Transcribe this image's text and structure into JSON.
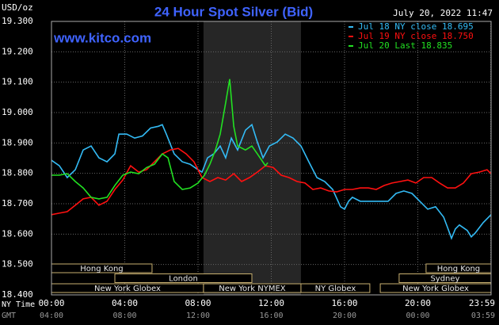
{
  "chart_data": {
    "type": "line",
    "title": "24 Hour Spot Silver (Bid)",
    "unit_label": "USD/oz",
    "timestamp": "July 20, 2022 11:47",
    "source": "www.kitco.com",
    "x_axis_label": "NY Time",
    "x2_axis_label": "GMT",
    "xlim": [
      0,
      24
    ],
    "xticks": [
      {
        "value": 0,
        "label": "00:00"
      },
      {
        "value": 4,
        "label": "04:00"
      },
      {
        "value": 8,
        "label": "08:00"
      },
      {
        "value": 12,
        "label": "12:00"
      },
      {
        "value": 16,
        "label": "16:00"
      },
      {
        "value": 20,
        "label": "20:00"
      },
      {
        "value": 23.983,
        "label": "23:59"
      }
    ],
    "gmt_labels": [
      "04:00",
      "08:00",
      "12:00",
      "16:00",
      "20:00",
      "00:00",
      "03:59"
    ],
    "ylim": [
      18.4,
      19.3
    ],
    "yticks": [
      {
        "value": 19.3,
        "label": "19.300"
      },
      {
        "value": 19.2,
        "label": "19.200"
      },
      {
        "value": 19.1,
        "label": "19.100"
      },
      {
        "value": 19.0,
        "label": "19.000"
      },
      {
        "value": 18.9,
        "label": "18.900"
      },
      {
        "value": 18.8,
        "label": "18.800"
      },
      {
        "value": 18.7,
        "label": "18.700"
      },
      {
        "value": 18.6,
        "label": "18.600"
      },
      {
        "value": 18.5,
        "label": "18.500"
      },
      {
        "value": 18.4,
        "label": "18.400"
      }
    ],
    "grid": true,
    "highlight": [
      8.3,
      13.62
    ],
    "sessions": [
      [
        {
          "label": "Hong Kong",
          "start": 0,
          "end": 5.49
        },
        {
          "label": "Hong Kong",
          "start": 20.45,
          "end": 24
        }
      ],
      [
        {
          "label": "London",
          "start": 3.46,
          "end": 10.94
        },
        {
          "label": "Sydney",
          "start": 18.98,
          "end": 24
        }
      ],
      [
        {
          "label": "New York Globex",
          "start": 0,
          "end": 8.3
        },
        {
          "label": "New York NYMEX",
          "start": 8.3,
          "end": 13.62
        },
        {
          "label": "NY Globex",
          "start": 13.62,
          "end": 17.38
        },
        {
          "label": "New York Globex",
          "start": 17.95,
          "end": 24
        }
      ]
    ],
    "series": [
      {
        "name": "Jul 18 NY close 18.695",
        "color": "#33bbf5",
        "x": [
          0,
          0.43,
          0.86,
          1.3,
          1.73,
          2.16,
          2.59,
          3.03,
          3.46,
          3.68,
          4.11,
          4.54,
          4.97,
          5.41,
          5.84,
          6.05,
          6.27,
          6.7,
          7.14,
          7.57,
          8.0,
          8.22,
          8.52,
          8.86,
          9.21,
          9.51,
          9.82,
          10.16,
          10.59,
          10.94,
          11.24,
          11.55,
          11.89,
          12.32,
          12.76,
          13.19,
          13.62,
          14.05,
          14.49,
          14.92,
          15.35,
          15.78,
          16.0,
          16.22,
          16.43,
          16.86,
          17.3,
          17.73,
          18.38,
          18.81,
          19.24,
          19.68,
          20.11,
          20.54,
          20.97,
          21.41,
          21.62,
          21.84,
          22.05,
          22.27,
          22.7,
          22.92,
          23.14,
          23.57,
          24.0
        ],
        "values": [
          18.843,
          18.825,
          18.786,
          18.812,
          18.877,
          18.89,
          18.851,
          18.838,
          18.864,
          18.929,
          18.929,
          18.916,
          18.923,
          18.949,
          18.955,
          18.96,
          18.929,
          18.864,
          18.838,
          18.83,
          18.812,
          18.804,
          18.851,
          18.864,
          18.89,
          18.851,
          18.916,
          18.877,
          18.942,
          18.96,
          18.903,
          18.851,
          18.89,
          18.903,
          18.929,
          18.916,
          18.89,
          18.838,
          18.786,
          18.773,
          18.747,
          18.69,
          18.682,
          18.708,
          18.721,
          18.708,
          18.708,
          18.708,
          18.708,
          18.734,
          18.742,
          18.734,
          18.708,
          18.682,
          18.69,
          18.656,
          18.622,
          18.586,
          18.617,
          18.63,
          18.612,
          18.591,
          18.604,
          18.638,
          18.664
        ]
      },
      {
        "name": "Jul 19 NY close 18.750",
        "color": "#ff1010",
        "x": [
          0,
          0.43,
          0.86,
          1.3,
          1.73,
          2.16,
          2.59,
          3.03,
          3.46,
          3.89,
          4.32,
          4.76,
          5.19,
          5.62,
          6.05,
          6.49,
          6.92,
          7.35,
          7.78,
          8.22,
          8.65,
          9.08,
          9.51,
          9.95,
          10.38,
          10.81,
          11.24,
          11.68,
          12.11,
          12.54,
          12.97,
          13.41,
          13.84,
          14.27,
          14.7,
          15.14,
          15.57,
          16.0,
          16.43,
          16.86,
          17.3,
          17.73,
          18.16,
          18.59,
          19.03,
          19.46,
          19.89,
          20.32,
          20.76,
          21.19,
          21.62,
          22.05,
          22.49,
          22.92,
          23.35,
          23.78,
          24.0
        ],
        "values": [
          18.664,
          18.669,
          18.674,
          18.695,
          18.716,
          18.721,
          18.695,
          18.708,
          18.747,
          18.778,
          18.825,
          18.804,
          18.812,
          18.838,
          18.864,
          18.877,
          18.882,
          18.864,
          18.838,
          18.786,
          18.773,
          18.786,
          18.778,
          18.799,
          18.773,
          18.786,
          18.804,
          18.825,
          18.819,
          18.794,
          18.786,
          18.773,
          18.768,
          18.747,
          18.752,
          18.742,
          18.739,
          18.747,
          18.747,
          18.752,
          18.752,
          18.747,
          18.76,
          18.768,
          18.773,
          18.778,
          18.768,
          18.786,
          18.786,
          18.768,
          18.752,
          18.752,
          18.768,
          18.799,
          18.804,
          18.812,
          18.799
        ]
      },
      {
        "name": "Jul 20 Last 18.835",
        "color": "#22e022",
        "x": [
          0,
          0.43,
          0.86,
          1.3,
          1.73,
          2.16,
          2.59,
          3.03,
          3.46,
          3.89,
          4.32,
          4.76,
          5.19,
          5.62,
          6.05,
          6.36,
          6.7,
          7.14,
          7.57,
          8.0,
          8.35,
          8.65,
          8.95,
          9.21,
          9.51,
          9.73,
          9.95,
          10.16,
          10.59,
          10.94,
          11.24,
          11.68,
          11.81
        ],
        "values": [
          18.794,
          18.794,
          18.799,
          18.773,
          18.752,
          18.721,
          18.716,
          18.721,
          18.76,
          18.794,
          18.804,
          18.799,
          18.819,
          18.83,
          18.864,
          18.851,
          18.773,
          18.747,
          18.752,
          18.768,
          18.794,
          18.83,
          18.877,
          18.929,
          19.032,
          19.11,
          18.955,
          18.89,
          18.877,
          18.89,
          18.864,
          18.825,
          18.835
        ]
      }
    ]
  }
}
